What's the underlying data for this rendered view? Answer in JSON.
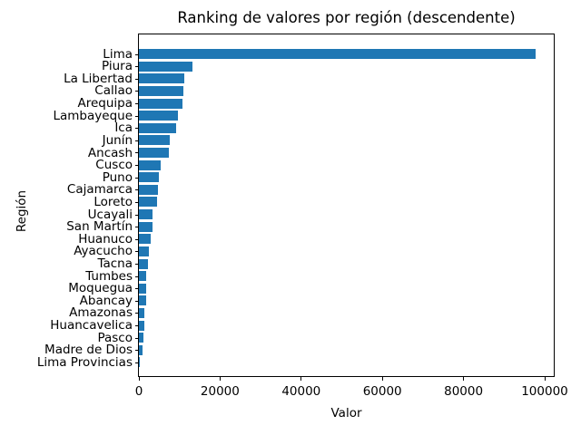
{
  "chart_data": {
    "type": "bar",
    "orientation": "horizontal",
    "title": "Ranking de valores por región (descendente)",
    "xlabel": "Valor",
    "ylabel": "Región",
    "categories": [
      "Lima",
      "Piura",
      "La Libertad",
      "Callao",
      "Arequipa",
      "Lambayeque",
      "Ica",
      "Junín",
      "Ancash",
      "Cusco",
      "Puno",
      "Cajamarca",
      "Loreto",
      "Ucayali",
      "San Martín",
      "Huanuco",
      "Ayacucho",
      "Tacna",
      "Tumbes",
      "Moquegua",
      "Abancay",
      "Amazonas",
      "Huancavelica",
      "Pasco",
      "Madre de Dios",
      "Lima Provincias"
    ],
    "values": [
      97800,
      13200,
      11250,
      11050,
      10750,
      9700,
      9150,
      7650,
      7400,
      5400,
      4900,
      4700,
      4450,
      3400,
      3350,
      2900,
      2450,
      2250,
      1850,
      1800,
      1750,
      1400,
      1350,
      1150,
      900,
      150
    ],
    "xlim": [
      0,
      102700
    ],
    "xticks": [
      0,
      20000,
      40000,
      60000,
      80000,
      100000
    ],
    "xtick_labels": [
      "0",
      "20000",
      "40000",
      "60000",
      "80000",
      "100000"
    ],
    "bar_color": "#1f77b4",
    "text_color": "#000000",
    "background_color": "#ffffff",
    "grid": false,
    "legend": "none"
  }
}
